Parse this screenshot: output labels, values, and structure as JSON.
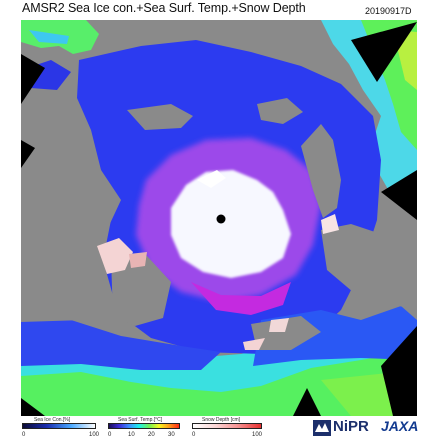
{
  "header": {
    "title": "AMSR2 Sea Ice con.+Sea Surf. Temp.+Snow Depth",
    "date": "20190917D"
  },
  "legend": {
    "ice": {
      "title": "Sea Ice Con.[%]",
      "ticks": [
        "0",
        "100"
      ]
    },
    "sst": {
      "title": "Sea Surf. Temp.[°C]",
      "ticks": [
        "0",
        "10",
        "20",
        "30"
      ]
    },
    "snow": {
      "title": "Snow Depth [cm]",
      "ticks": [
        "0",
        "100"
      ]
    }
  },
  "logos": {
    "nipr": "NiPR",
    "jaxa": "JAXA"
  },
  "colors": {
    "land": "#8a8a8a",
    "ice": "#f7f8ff",
    "cold_ocean": "#2f3cf0",
    "warm_ocean": "#52ef5c",
    "marginal_ice": "#c24ce6",
    "snow": "#f4d0d0",
    "no_data": "#000000"
  },
  "icons": [
    "north-pole-marker-icon",
    "nipr-logo-icon",
    "jaxa-logo-icon"
  ]
}
